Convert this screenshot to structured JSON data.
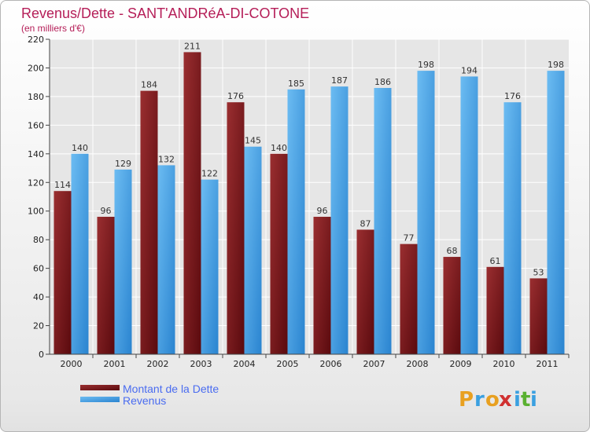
{
  "chart_data": {
    "type": "bar",
    "title": "Revenus/Dette - SANT'ANDRéA-DI-COTONE",
    "subtitle": "(en milliers d'€)",
    "categories": [
      "2000",
      "2001",
      "2002",
      "2003",
      "2004",
      "2005",
      "2006",
      "2007",
      "2008",
      "2009",
      "2010",
      "2011"
    ],
    "series": [
      {
        "name": "Montant de la Dette",
        "values": [
          114,
          96,
          184,
          211,
          176,
          140,
          96,
          87,
          77,
          68,
          61,
          53
        ],
        "color": "#7a1a1e"
      },
      {
        "name": "Revenus",
        "values": [
          140,
          129,
          132,
          122,
          145,
          185,
          187,
          186,
          198,
          194,
          176,
          198
        ],
        "color": "#4aa6e8"
      }
    ],
    "ylim": [
      0,
      220
    ],
    "yticks": [
      0,
      20,
      40,
      60,
      80,
      100,
      120,
      140,
      160,
      180,
      200,
      220
    ],
    "grid": true,
    "legend_position": "bottom-left"
  },
  "logo": {
    "letters": [
      "P",
      "r",
      "o",
      "x",
      "i",
      "t",
      "i"
    ],
    "colors": [
      "#e8a020",
      "#3aa0e0",
      "#e8a020",
      "#d03030",
      "#3aa0e0",
      "#5ab030",
      "#3aa0e0"
    ]
  }
}
